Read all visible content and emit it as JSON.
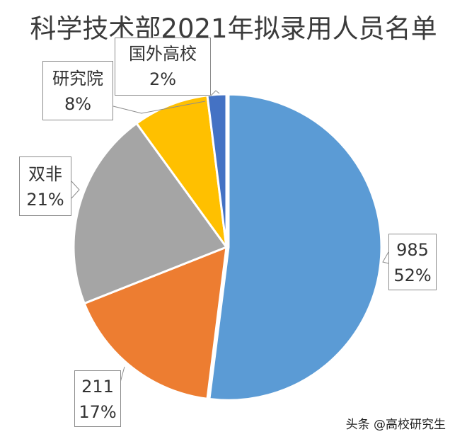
{
  "chart_data": {
    "type": "pie",
    "title": "科学技术部2021年拟录用人员名单",
    "categories": [
      "985",
      "211",
      "双非",
      "研究院",
      "国外高校"
    ],
    "values": [
      52,
      17,
      21,
      8,
      2
    ],
    "unit": "%",
    "colors": [
      "#5b9bd5",
      "#ed7d31",
      "#a5a5a5",
      "#ffc000",
      "#4472c4"
    ],
    "start_angle": "12 o'clock, clockwise",
    "labels": [
      {
        "name": "985",
        "pct": "52%"
      },
      {
        "name": "211",
        "pct": "17%"
      },
      {
        "name": "双非",
        "pct": "21%"
      },
      {
        "name": "研究院",
        "pct": "8%"
      },
      {
        "name": "国外高校",
        "pct": "2%"
      }
    ],
    "legend": "none",
    "data_labels": "callouts with category name and percentage"
  },
  "watermark": "头条 @高校研究生"
}
